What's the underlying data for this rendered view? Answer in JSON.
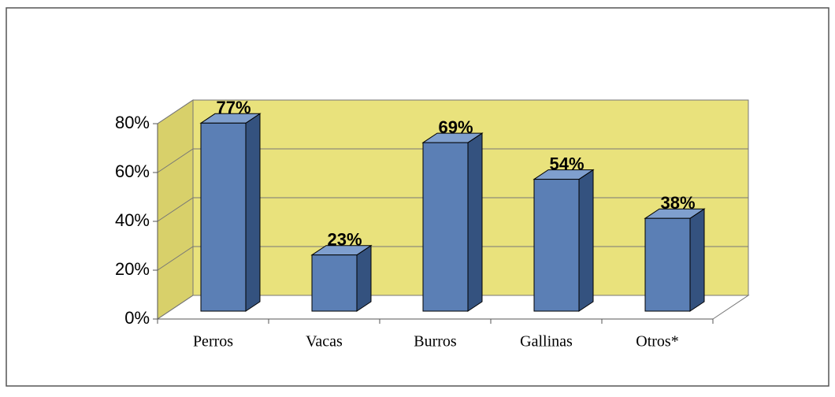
{
  "chart_data": {
    "type": "bar3d",
    "categories": [
      "Perros",
      "Vacas",
      "Burros",
      "Gallinas",
      "Otros*"
    ],
    "values": [
      77,
      23,
      69,
      54,
      38
    ],
    "value_labels": [
      "77%",
      "23%",
      "69%",
      "54%",
      "38%"
    ],
    "color": "#5b7fb5",
    "ylim": [
      0,
      80
    ],
    "yticks": [
      {
        "value": 0,
        "label": "0%"
      },
      {
        "value": 20,
        "label": "20%"
      },
      {
        "value": 40,
        "label": "40%"
      },
      {
        "value": 60,
        "label": "60%"
      },
      {
        "value": 80,
        "label": "80%"
      }
    ],
    "grid": true
  }
}
